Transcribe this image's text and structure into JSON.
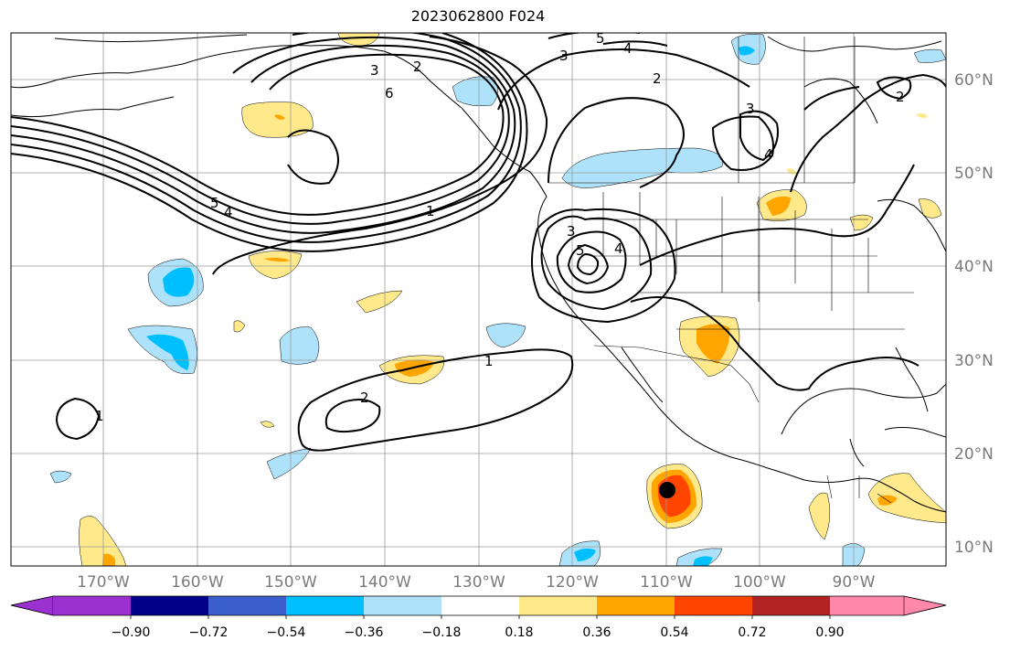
{
  "title": "2023062800 F024",
  "lon_labels": [
    "170°W",
    "160°W",
    "150°W",
    "140°W",
    "130°W",
    "120°W",
    "110°W",
    "100°W",
    "90°W"
  ],
  "lat_labels": [
    "60°N",
    "50°N",
    "40°N",
    "30°N",
    "20°N",
    "10°N"
  ],
  "colorbar": {
    "ticks": [
      "−0.90",
      "−0.72",
      "−0.54",
      "−0.36",
      "−0.18",
      "0.18",
      "0.36",
      "0.54",
      "0.72",
      "0.90"
    ],
    "colors": [
      "#9b30d0",
      "#00008b",
      "#3a5fcd",
      "#00bfff",
      "#aee2fb",
      "#ffffff",
      "#ffe98a",
      "#ffa500",
      "#ff4500",
      "#b22222",
      "#ff88aa"
    ]
  },
  "contour_labels": [
    "3",
    "2",
    "6",
    "5",
    "4",
    "3",
    "2",
    "2",
    "3",
    "4",
    "5",
    "4",
    "1",
    "3",
    "5",
    "4",
    "1",
    "2",
    "1"
  ],
  "colors": {
    "positive_low": "#ffe98a",
    "positive_mid": "#ffa500",
    "positive_high": "#ff4500",
    "negative_low": "#aee2fb",
    "negative_mid": "#00bfff"
  }
}
